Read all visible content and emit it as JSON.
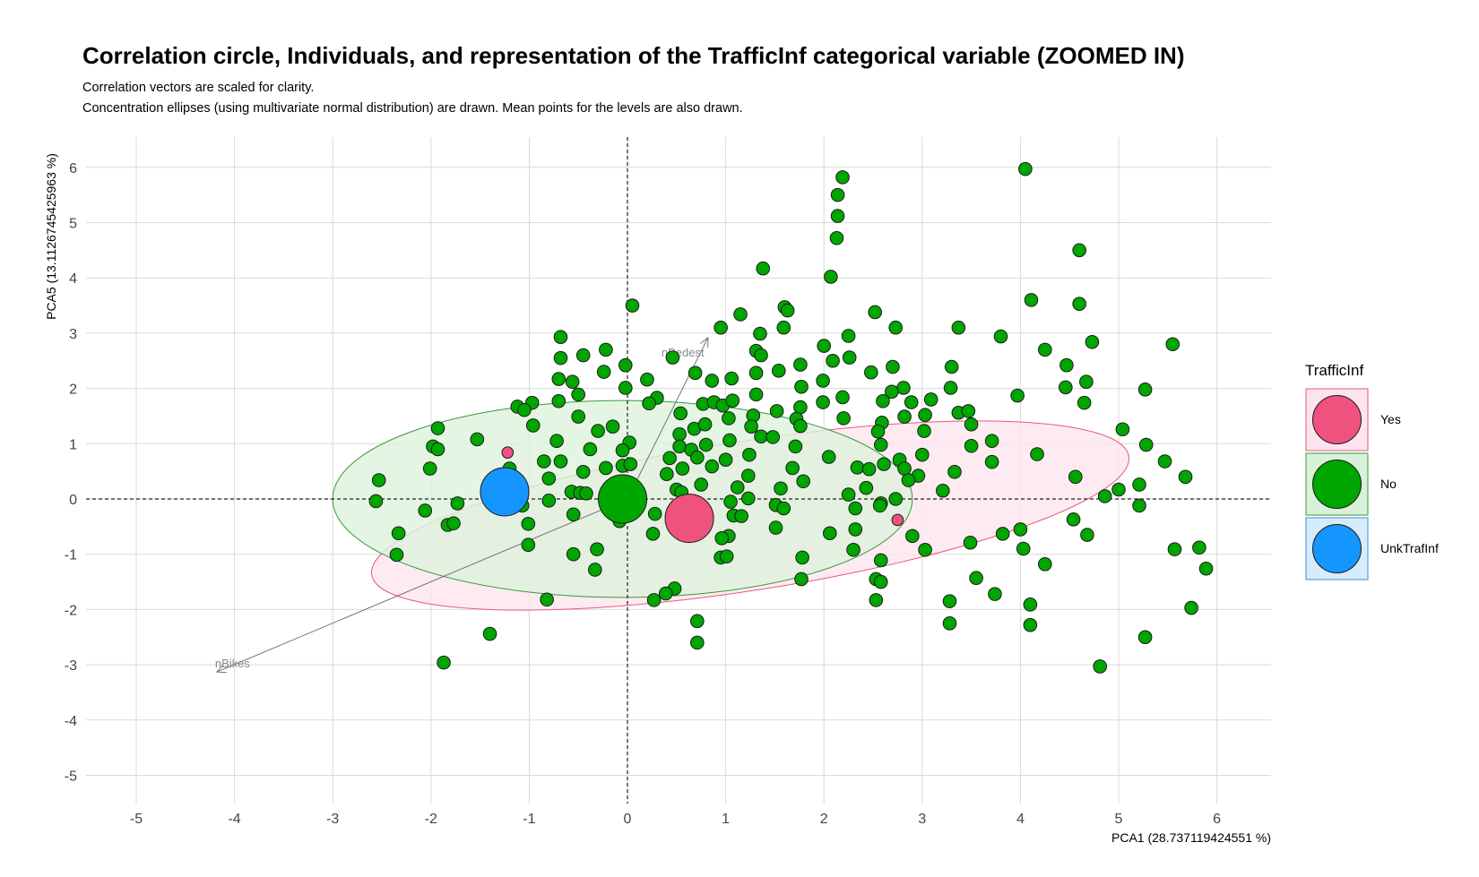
{
  "chart_data": {
    "type": "scatter",
    "title": "Correlation circle, Individuals, and representation of the TrafficInf categorical variable (ZOOMED IN)",
    "subtitle_lines": [
      "Correlation vectors are scaled for clarity.",
      "Concentration ellipses (using multivariate normal distribution) are drawn. Mean points for the levels are also drawn."
    ],
    "xlabel": "PCA1 (28.737119424551 %)",
    "ylabel": "PCA5 (13.1126745425963 %)",
    "xlim": [
      -5.5,
      6.55
    ],
    "ylim": [
      -5.55,
      6.55
    ],
    "x_ticks": [
      -5,
      -4,
      -3,
      -2,
      -1,
      0,
      1,
      2,
      3,
      4,
      5,
      6
    ],
    "y_ticks": [
      -5,
      -4,
      -3,
      -2,
      -1,
      0,
      1,
      2,
      3,
      4,
      5,
      6
    ],
    "legend": {
      "title": "TrafficInf",
      "position": "right",
      "entries": [
        {
          "label": "Yes",
          "color": "#F0527F"
        },
        {
          "label": "No",
          "color": "#00A600"
        },
        {
          "label": "UnkTrafInf",
          "color": "#1596FF"
        }
      ]
    },
    "ellipses": [
      {
        "group": "Yes",
        "cx": 1.25,
        "cy": -0.3,
        "rx": 3.9,
        "ry": 1.35,
        "angle_deg": -8.9,
        "fill": "#FCE6EE",
        "stroke": "#E8587F"
      },
      {
        "group": "No",
        "cx": -0.05,
        "cy": 0.0,
        "rx": 2.95,
        "ry": 1.78,
        "angle_deg": 0,
        "fill": "#DDF2DD",
        "stroke": "#3A9A3A"
      }
    ],
    "vectors": [
      {
        "name": "nPedest",
        "x": 0.82,
        "y": 2.92
      },
      {
        "name": "nBikes",
        "x": -4.18,
        "y": -3.13
      }
    ],
    "group_means": [
      {
        "group": "No",
        "x": -0.05,
        "y": 0.0
      },
      {
        "group": "UnkTrafInf",
        "x": -1.25,
        "y": 0.13
      },
      {
        "group": "Yes",
        "x": 0.63,
        "y": -0.35
      }
    ],
    "points_yes": [
      [
        -1.22,
        0.84
      ],
      [
        2.75,
        -0.38
      ]
    ],
    "points_no": [
      [
        2.19,
        5.82
      ],
      [
        2.14,
        5.5
      ],
      [
        2.14,
        5.12
      ],
      [
        2.13,
        4.72
      ],
      [
        2.07,
        4.02
      ],
      [
        1.38,
        4.17
      ],
      [
        4.05,
        5.97
      ],
      [
        4.6,
        4.5
      ],
      [
        4.11,
        3.6
      ],
      [
        4.6,
        3.53
      ],
      [
        0.05,
        3.5
      ],
      [
        1.6,
        3.47
      ],
      [
        1.63,
        3.41
      ],
      [
        1.15,
        3.34
      ],
      [
        2.52,
        3.38
      ],
      [
        3.37,
        3.1
      ],
      [
        2.73,
        3.1
      ],
      [
        0.95,
        3.1
      ],
      [
        1.59,
        3.1
      ],
      [
        1.35,
        2.99
      ],
      [
        2.25,
        2.95
      ],
      [
        3.8,
        2.94
      ],
      [
        -0.68,
        2.93
      ],
      [
        -0.68,
        2.55
      ],
      [
        -0.45,
        2.6
      ],
      [
        -0.22,
        2.7
      ],
      [
        5.55,
        2.8
      ],
      [
        4.73,
        2.84
      ],
      [
        4.25,
        2.7
      ],
      [
        2.0,
        2.77
      ],
      [
        1.31,
        2.68
      ],
      [
        1.36,
        2.6
      ],
      [
        2.26,
        2.56
      ],
      [
        2.09,
        2.5
      ],
      [
        2.7,
        2.39
      ],
      [
        3.3,
        2.39
      ],
      [
        4.47,
        2.42
      ],
      [
        1.76,
        2.43
      ],
      [
        1.54,
        2.32
      ],
      [
        -0.02,
        2.42
      ],
      [
        0.46,
        2.56
      ],
      [
        0.69,
        2.28
      ],
      [
        1.31,
        2.28
      ],
      [
        2.48,
        2.29
      ],
      [
        -0.24,
        2.3
      ],
      [
        -0.7,
        2.17
      ],
      [
        -0.56,
        2.12
      ],
      [
        0.86,
        2.14
      ],
      [
        0.2,
        2.16
      ],
      [
        1.06,
        2.18
      ],
      [
        1.99,
        2.14
      ],
      [
        1.77,
        2.03
      ],
      [
        2.81,
        2.01
      ],
      [
        2.69,
        1.94
      ],
      [
        3.29,
        2.01
      ],
      [
        4.46,
        2.02
      ],
      [
        4.67,
        2.12
      ],
      [
        5.27,
        1.98
      ],
      [
        3.97,
        1.87
      ],
      [
        -0.02,
        2.01
      ],
      [
        -0.5,
        1.89
      ],
      [
        -1.12,
        1.67
      ],
      [
        -0.97,
        1.74
      ],
      [
        -0.7,
        1.77
      ],
      [
        0.3,
        1.83
      ],
      [
        0.77,
        1.72
      ],
      [
        0.88,
        1.75
      ],
      [
        0.97,
        1.69
      ],
      [
        1.07,
        1.78
      ],
      [
        1.31,
        1.89
      ],
      [
        1.52,
        1.59
      ],
      [
        1.76,
        1.66
      ],
      [
        1.99,
        1.75
      ],
      [
        2.19,
        1.84
      ],
      [
        2.6,
        1.77
      ],
      [
        2.89,
        1.75
      ],
      [
        3.09,
        1.8
      ],
      [
        3.37,
        1.56
      ],
      [
        3.47,
        1.59
      ],
      [
        4.65,
        1.74
      ],
      [
        0.22,
        1.73
      ],
      [
        -1.05,
        1.61
      ],
      [
        -0.5,
        1.49
      ],
      [
        0.54,
        1.55
      ],
      [
        1.03,
        1.46
      ],
      [
        1.28,
        1.51
      ],
      [
        1.72,
        1.45
      ],
      [
        2.2,
        1.46
      ],
      [
        2.59,
        1.38
      ],
      [
        2.82,
        1.49
      ],
      [
        3.03,
        1.52
      ],
      [
        3.5,
        1.35
      ],
      [
        -0.15,
        1.31
      ],
      [
        -0.3,
        1.23
      ],
      [
        -0.96,
        1.33
      ],
      [
        0.53,
        1.17
      ],
      [
        0.68,
        1.27
      ],
      [
        0.79,
        1.35
      ],
      [
        1.04,
        1.06
      ],
      [
        1.26,
        1.31
      ],
      [
        1.36,
        1.13
      ],
      [
        1.76,
        1.32
      ],
      [
        2.55,
        1.22
      ],
      [
        3.02,
        1.23
      ],
      [
        5.04,
        1.26
      ],
      [
        -1.93,
        1.28
      ],
      [
        -1.53,
        1.08
      ],
      [
        -1.98,
        0.95
      ],
      [
        -0.72,
        1.05
      ],
      [
        0.02,
        1.02
      ],
      [
        0.53,
        0.95
      ],
      [
        0.65,
        0.89
      ],
      [
        0.8,
        0.98
      ],
      [
        1.48,
        1.12
      ],
      [
        1.71,
        0.95
      ],
      [
        2.58,
        0.98
      ],
      [
        3.5,
        0.96
      ],
      [
        3.71,
        1.05
      ],
      [
        4.17,
        0.81
      ],
      [
        5.28,
        0.98
      ],
      [
        -1.93,
        0.9
      ],
      [
        -0.38,
        0.9
      ],
      [
        -0.05,
        0.88
      ],
      [
        0.43,
        0.74
      ],
      [
        0.71,
        0.75
      ],
      [
        1.0,
        0.71
      ],
      [
        1.24,
        0.8
      ],
      [
        2.05,
        0.76
      ],
      [
        2.77,
        0.71
      ],
      [
        3.0,
        0.8
      ],
      [
        3.71,
        0.67
      ],
      [
        5.47,
        0.68
      ],
      [
        -2.01,
        0.55
      ],
      [
        -1.2,
        0.55
      ],
      [
        -0.85,
        0.68
      ],
      [
        -0.68,
        0.68
      ],
      [
        -0.45,
        0.49
      ],
      [
        -0.22,
        0.56
      ],
      [
        -0.05,
        0.6
      ],
      [
        0.03,
        0.63
      ],
      [
        0.4,
        0.45
      ],
      [
        0.56,
        0.55
      ],
      [
        0.86,
        0.59
      ],
      [
        1.23,
        0.42
      ],
      [
        1.68,
        0.56
      ],
      [
        2.34,
        0.57
      ],
      [
        2.46,
        0.54
      ],
      [
        2.61,
        0.63
      ],
      [
        2.82,
        0.55
      ],
      [
        2.96,
        0.42
      ],
      [
        3.33,
        0.49
      ],
      [
        4.56,
        0.4
      ],
      [
        5.68,
        0.4
      ],
      [
        -2.53,
        0.34
      ],
      [
        -0.8,
        0.37
      ],
      [
        -0.57,
        0.13
      ],
      [
        -0.48,
        0.11
      ],
      [
        -0.42,
        0.1
      ],
      [
        0.5,
        0.17
      ],
      [
        0.55,
        0.12
      ],
      [
        0.75,
        0.26
      ],
      [
        1.12,
        0.21
      ],
      [
        1.56,
        0.19
      ],
      [
        1.79,
        0.32
      ],
      [
        2.25,
        0.08
      ],
      [
        2.43,
        0.2
      ],
      [
        2.86,
        0.34
      ],
      [
        3.21,
        0.15
      ],
      [
        4.86,
        0.05
      ],
      [
        5.0,
        0.17
      ],
      [
        5.21,
        0.26
      ],
      [
        -2.56,
        -0.04
      ],
      [
        -1.73,
        -0.08
      ],
      [
        -1.07,
        -0.12
      ],
      [
        -0.8,
        -0.03
      ],
      [
        1.23,
        0.01
      ],
      [
        2.58,
        -0.08
      ],
      [
        2.73,
        0.0
      ],
      [
        5.21,
        -0.12
      ],
      [
        1.05,
        -0.05
      ],
      [
        -2.06,
        -0.21
      ],
      [
        -0.55,
        -0.28
      ],
      [
        -0.08,
        -0.4
      ],
      [
        0.28,
        -0.27
      ],
      [
        0.46,
        -0.31
      ],
      [
        1.08,
        -0.3
      ],
      [
        1.16,
        -0.31
      ],
      [
        1.51,
        -0.11
      ],
      [
        1.59,
        -0.17
      ],
      [
        2.32,
        -0.17
      ],
      [
        2.57,
        -0.12
      ],
      [
        4.54,
        -0.37
      ],
      [
        -2.33,
        -0.62
      ],
      [
        -1.83,
        -0.47
      ],
      [
        -1.77,
        -0.44
      ],
      [
        -1.01,
        -0.45
      ],
      [
        0.26,
        -0.63
      ],
      [
        1.03,
        -0.67
      ],
      [
        0.96,
        -0.71
      ],
      [
        1.51,
        -0.52
      ],
      [
        2.06,
        -0.62
      ],
      [
        2.32,
        -0.55
      ],
      [
        2.9,
        -0.67
      ],
      [
        4.0,
        -0.55
      ],
      [
        4.68,
        -0.65
      ],
      [
        -1.01,
        -0.83
      ],
      [
        -0.55,
        -1.0
      ],
      [
        -0.31,
        -0.91
      ],
      [
        0.95,
        -1.06
      ],
      [
        1.01,
        -1.04
      ],
      [
        2.3,
        -0.92
      ],
      [
        3.03,
        -0.92
      ],
      [
        3.49,
        -0.79
      ],
      [
        3.82,
        -0.63
      ],
      [
        4.03,
        -0.9
      ],
      [
        5.57,
        -0.91
      ],
      [
        5.82,
        -0.88
      ],
      [
        -2.35,
        -1.01
      ],
      [
        -0.33,
        -1.28
      ],
      [
        1.78,
        -1.06
      ],
      [
        2.58,
        -1.11
      ],
      [
        4.25,
        -1.18
      ],
      [
        5.89,
        -1.26
      ],
      [
        1.77,
        -1.45
      ],
      [
        2.53,
        -1.45
      ],
      [
        2.58,
        -1.5
      ],
      [
        3.55,
        -1.43
      ],
      [
        0.48,
        -1.62
      ],
      [
        0.39,
        -1.71
      ],
      [
        0.27,
        -1.83
      ],
      [
        -0.82,
        -1.82
      ],
      [
        2.53,
        -1.83
      ],
      [
        3.28,
        -1.85
      ],
      [
        3.74,
        -1.72
      ],
      [
        4.1,
        -1.91
      ],
      [
        5.74,
        -1.97
      ],
      [
        0.71,
        -2.21
      ],
      [
        3.28,
        -2.25
      ],
      [
        4.1,
        -2.28
      ],
      [
        -1.4,
        -2.44
      ],
      [
        0.71,
        -2.6
      ],
      [
        5.27,
        -2.5
      ],
      [
        -1.87,
        -2.96
      ],
      [
        4.81,
        -3.03
      ]
    ]
  }
}
